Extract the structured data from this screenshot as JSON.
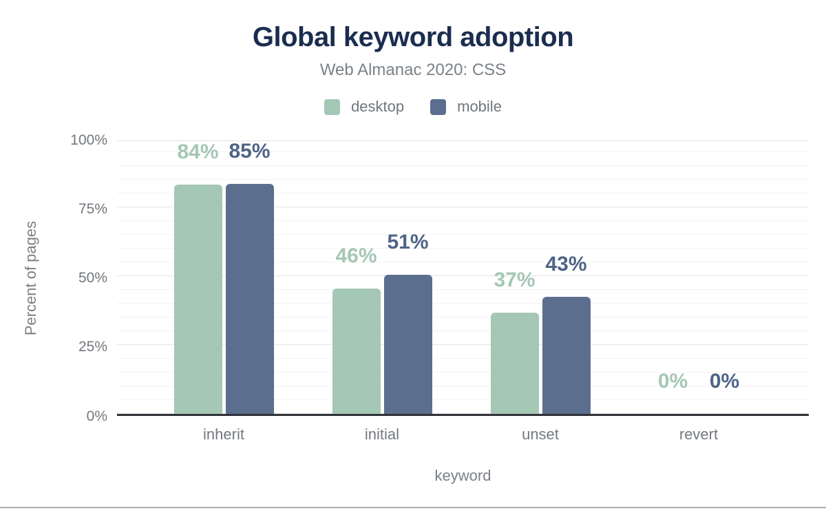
{
  "colors": {
    "title": "#1b2d4f",
    "axis_text": "#73777d",
    "axis_line": "#2f3338",
    "desktop": "#a5c7b5",
    "desktop_label": "#a5c7b5",
    "mobile": "#5b6e8e",
    "mobile_label": "#4e6486"
  },
  "chart_data": {
    "type": "bar",
    "title": "Global keyword adoption",
    "subtitle": "Web Almanac 2020: CSS",
    "categories": [
      "inherit",
      "initial",
      "unset",
      "revert"
    ],
    "series": [
      {
        "name": "desktop",
        "color": "#a5c7b5",
        "label_color": "#a5c7b5",
        "values": [
          84,
          46,
          37,
          0
        ],
        "labels": [
          "84%",
          "46%",
          "37%",
          "0%"
        ]
      },
      {
        "name": "mobile",
        "color": "#5b6e8e",
        "label_color": "#4e6486",
        "values": [
          85,
          51,
          43,
          0
        ],
        "labels": [
          "85%",
          "51%",
          "43%",
          "0%"
        ]
      }
    ],
    "xlabel": "keyword",
    "ylabel": "Percent of pages",
    "ylim": [
      0,
      100
    ],
    "yticks": [
      "0%",
      "25%",
      "50%",
      "75%",
      "100%"
    ],
    "grid": {
      "minor_step_pct": 5,
      "major_step_pct": 25
    },
    "legend_position": "top"
  }
}
